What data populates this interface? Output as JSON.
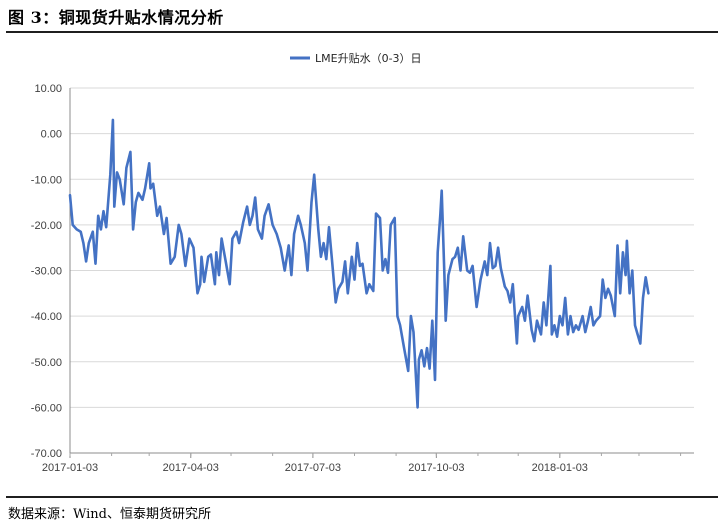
{
  "header": {
    "figure_title": "图 3：铜现货升贴水情况分析"
  },
  "footer": {
    "source": "数据来源：Wind、恒泰期货研究所"
  },
  "chart_data": {
    "type": "line",
    "title": "",
    "xlabel": "",
    "ylabel": "",
    "ylim": [
      -70,
      10
    ],
    "y_ticks": [
      10,
      0,
      -10,
      -20,
      -30,
      -40,
      -50,
      -60,
      -70
    ],
    "y_tick_labels": [
      "10.00",
      "0.00",
      "-10.00",
      "-20.00",
      "-30.00",
      "-40.00",
      "-50.00",
      "-60.00",
      "-70.00"
    ],
    "x_ticks": [
      "2017-01-03",
      "2017-04-03",
      "2017-07-03",
      "2017-10-03",
      "2018-01-03"
    ],
    "xlim": [
      "2017-01-03",
      "2018-04-13"
    ],
    "grid": "horizontal",
    "legend": "top",
    "line_color": "#4472C4",
    "series": [
      {
        "name": "LME升贴水（0-3）日",
        "points": [
          [
            "2017-01-03",
            -13.5
          ],
          [
            "2017-01-05",
            -20
          ],
          [
            "2017-01-08",
            -21
          ],
          [
            "2017-01-11",
            -21.5
          ],
          [
            "2017-01-13",
            -24
          ],
          [
            "2017-01-15",
            -28
          ],
          [
            "2017-01-17",
            -24
          ],
          [
            "2017-01-20",
            -21.5
          ],
          [
            "2017-01-22",
            -28.5
          ],
          [
            "2017-01-24",
            -18
          ],
          [
            "2017-01-26",
            -21
          ],
          [
            "2017-01-28",
            -17
          ],
          [
            "2017-01-30",
            -20.5
          ],
          [
            "2017-02-02",
            -9
          ],
          [
            "2017-02-04",
            3
          ],
          [
            "2017-02-05",
            -16
          ],
          [
            "2017-02-07",
            -8.5
          ],
          [
            "2017-02-09",
            -10
          ],
          [
            "2017-02-12",
            -15.5
          ],
          [
            "2017-02-14",
            -7.5
          ],
          [
            "2017-02-17",
            -4
          ],
          [
            "2017-02-19",
            -21
          ],
          [
            "2017-02-21",
            -15
          ],
          [
            "2017-02-23",
            -13
          ],
          [
            "2017-02-26",
            -14.5
          ],
          [
            "2017-02-28",
            -12
          ],
          [
            "2017-03-03",
            -6.5
          ],
          [
            "2017-03-04",
            -12
          ],
          [
            "2017-03-06",
            -11
          ],
          [
            "2017-03-09",
            -18
          ],
          [
            "2017-03-11",
            -16
          ],
          [
            "2017-03-14",
            -22
          ],
          [
            "2017-03-16",
            -18.5
          ],
          [
            "2017-03-19",
            -28.5
          ],
          [
            "2017-03-22",
            -27
          ],
          [
            "2017-03-25",
            -20
          ],
          [
            "2017-03-27",
            -22
          ],
          [
            "2017-03-30",
            -29
          ],
          [
            "2017-04-02",
            -23
          ],
          [
            "2017-04-05",
            -25
          ],
          [
            "2017-04-08",
            -35
          ],
          [
            "2017-04-10",
            -33
          ],
          [
            "2017-04-11",
            -27
          ],
          [
            "2017-04-13",
            -32.5
          ],
          [
            "2017-04-16",
            -27
          ],
          [
            "2017-04-18",
            -26.5
          ],
          [
            "2017-04-21",
            -33
          ],
          [
            "2017-04-22",
            -26
          ],
          [
            "2017-04-24",
            -31
          ],
          [
            "2017-04-26",
            -23
          ],
          [
            "2017-04-29",
            -28
          ],
          [
            "2017-05-02",
            -33
          ],
          [
            "2017-05-04",
            -23
          ],
          [
            "2017-05-07",
            -21.5
          ],
          [
            "2017-05-09",
            -24
          ],
          [
            "2017-05-12",
            -19.5
          ],
          [
            "2017-05-15",
            -16
          ],
          [
            "2017-05-17",
            -20
          ],
          [
            "2017-05-19",
            -18
          ],
          [
            "2017-05-21",
            -14
          ],
          [
            "2017-05-23",
            -21
          ],
          [
            "2017-05-26",
            -23
          ],
          [
            "2017-05-28",
            -18
          ],
          [
            "2017-05-31",
            -15.5
          ],
          [
            "2017-06-03",
            -20
          ],
          [
            "2017-06-06",
            -22
          ],
          [
            "2017-06-09",
            -25
          ],
          [
            "2017-06-12",
            -30
          ],
          [
            "2017-06-15",
            -24.5
          ],
          [
            "2017-06-17",
            -31
          ],
          [
            "2017-06-19",
            -22
          ],
          [
            "2017-06-22",
            -18
          ],
          [
            "2017-06-24",
            -20
          ],
          [
            "2017-06-27",
            -24
          ],
          [
            "2017-06-29",
            -30
          ],
          [
            "2017-07-02",
            -15
          ],
          [
            "2017-07-04",
            -9
          ],
          [
            "2017-07-07",
            -21
          ],
          [
            "2017-07-09",
            -27
          ],
          [
            "2017-07-11",
            -24
          ],
          [
            "2017-07-13",
            -27.5
          ],
          [
            "2017-07-15",
            -20.5
          ],
          [
            "2017-07-17",
            -27
          ],
          [
            "2017-07-20",
            -37
          ],
          [
            "2017-07-22",
            -34
          ],
          [
            "2017-07-25",
            -32.5
          ],
          [
            "2017-07-27",
            -28
          ],
          [
            "2017-07-29",
            -35
          ],
          [
            "2017-08-01",
            -27
          ],
          [
            "2017-08-03",
            -32
          ],
          [
            "2017-08-05",
            -24
          ],
          [
            "2017-08-07",
            -29
          ],
          [
            "2017-08-09",
            -28.5
          ],
          [
            "2017-08-12",
            -35
          ],
          [
            "2017-08-14",
            -33
          ],
          [
            "2017-08-17",
            -34.5
          ],
          [
            "2017-08-19",
            -17.5
          ],
          [
            "2017-08-22",
            -18.5
          ],
          [
            "2017-08-24",
            -30
          ],
          [
            "2017-08-26",
            -27.5
          ],
          [
            "2017-08-28",
            -30.5
          ],
          [
            "2017-08-30",
            -20
          ],
          [
            "2017-09-02",
            -18.5
          ],
          [
            "2017-09-04",
            -40
          ],
          [
            "2017-09-06",
            -42
          ],
          [
            "2017-09-09",
            -47
          ],
          [
            "2017-09-12",
            -52
          ],
          [
            "2017-09-14",
            -40
          ],
          [
            "2017-09-16",
            -43.5
          ],
          [
            "2017-09-19",
            -60
          ],
          [
            "2017-09-20",
            -49.5
          ],
          [
            "2017-09-22",
            -47.5
          ],
          [
            "2017-09-24",
            -51
          ],
          [
            "2017-09-26",
            -47
          ],
          [
            "2017-09-28",
            -51.5
          ],
          [
            "2017-09-30",
            -41
          ],
          [
            "2017-10-02",
            -54
          ],
          [
            "2017-10-04",
            -26
          ],
          [
            "2017-10-06",
            -17.5
          ],
          [
            "2017-10-07",
            -12.5
          ],
          [
            "2017-10-09",
            -31
          ],
          [
            "2017-10-10",
            -41
          ],
          [
            "2017-10-12",
            -31
          ],
          [
            "2017-10-15",
            -27.5
          ],
          [
            "2017-10-17",
            -27
          ],
          [
            "2017-10-19",
            -25
          ],
          [
            "2017-10-21",
            -30
          ],
          [
            "2017-10-23",
            -22.5
          ],
          [
            "2017-10-26",
            -30
          ],
          [
            "2017-10-28",
            -30.5
          ],
          [
            "2017-10-30",
            -29
          ],
          [
            "2017-11-02",
            -38
          ],
          [
            "2017-11-05",
            -32
          ],
          [
            "2017-11-08",
            -28
          ],
          [
            "2017-11-10",
            -31
          ],
          [
            "2017-11-12",
            -24
          ],
          [
            "2017-11-14",
            -29.5
          ],
          [
            "2017-11-16",
            -29
          ],
          [
            "2017-11-18",
            -25
          ],
          [
            "2017-11-20",
            -29.5
          ],
          [
            "2017-11-23",
            -33.5
          ],
          [
            "2017-11-25",
            -34.5
          ],
          [
            "2017-11-27",
            -37
          ],
          [
            "2017-11-29",
            -33
          ],
          [
            "2017-12-02",
            -46
          ],
          [
            "2017-12-03",
            -40
          ],
          [
            "2017-12-06",
            -38
          ],
          [
            "2017-12-08",
            -41
          ],
          [
            "2017-12-10",
            -35.5
          ],
          [
            "2017-12-13",
            -43
          ],
          [
            "2017-12-15",
            -45.5
          ],
          [
            "2017-12-17",
            -41
          ],
          [
            "2017-12-20",
            -44
          ],
          [
            "2017-12-22",
            -37
          ],
          [
            "2017-12-24",
            -42
          ],
          [
            "2017-12-27",
            -29
          ],
          [
            "2017-12-28",
            -44
          ],
          [
            "2017-12-30",
            -42
          ],
          [
            "2018-01-01",
            -44.5
          ],
          [
            "2018-01-03",
            -40
          ],
          [
            "2018-01-05",
            -42
          ],
          [
            "2018-01-07",
            -36
          ],
          [
            "2018-01-09",
            -44
          ],
          [
            "2018-01-11",
            -40
          ],
          [
            "2018-01-13",
            -43.5
          ],
          [
            "2018-01-15",
            -42
          ],
          [
            "2018-01-17",
            -43
          ],
          [
            "2018-01-20",
            -40
          ],
          [
            "2018-01-22",
            -43.5
          ],
          [
            "2018-01-24",
            -41
          ],
          [
            "2018-01-26",
            -38
          ],
          [
            "2018-01-28",
            -42
          ],
          [
            "2018-01-30",
            -41
          ],
          [
            "2018-02-02",
            -40
          ],
          [
            "2018-02-04",
            -32
          ],
          [
            "2018-02-06",
            -36
          ],
          [
            "2018-02-08",
            -34
          ],
          [
            "2018-02-10",
            -35.5
          ],
          [
            "2018-02-13",
            -40
          ],
          [
            "2018-02-15",
            -24.5
          ],
          [
            "2018-02-17",
            -35
          ],
          [
            "2018-02-19",
            -26
          ],
          [
            "2018-02-21",
            -31
          ],
          [
            "2018-02-22",
            -23.5
          ],
          [
            "2018-02-24",
            -35
          ],
          [
            "2018-02-26",
            -30
          ],
          [
            "2018-02-28",
            -42
          ],
          [
            "2018-03-02",
            -44
          ],
          [
            "2018-03-04",
            -46
          ],
          [
            "2018-03-06",
            -36
          ],
          [
            "2018-03-08",
            -31.5
          ],
          [
            "2018-03-10",
            -35
          ]
        ]
      }
    ]
  }
}
